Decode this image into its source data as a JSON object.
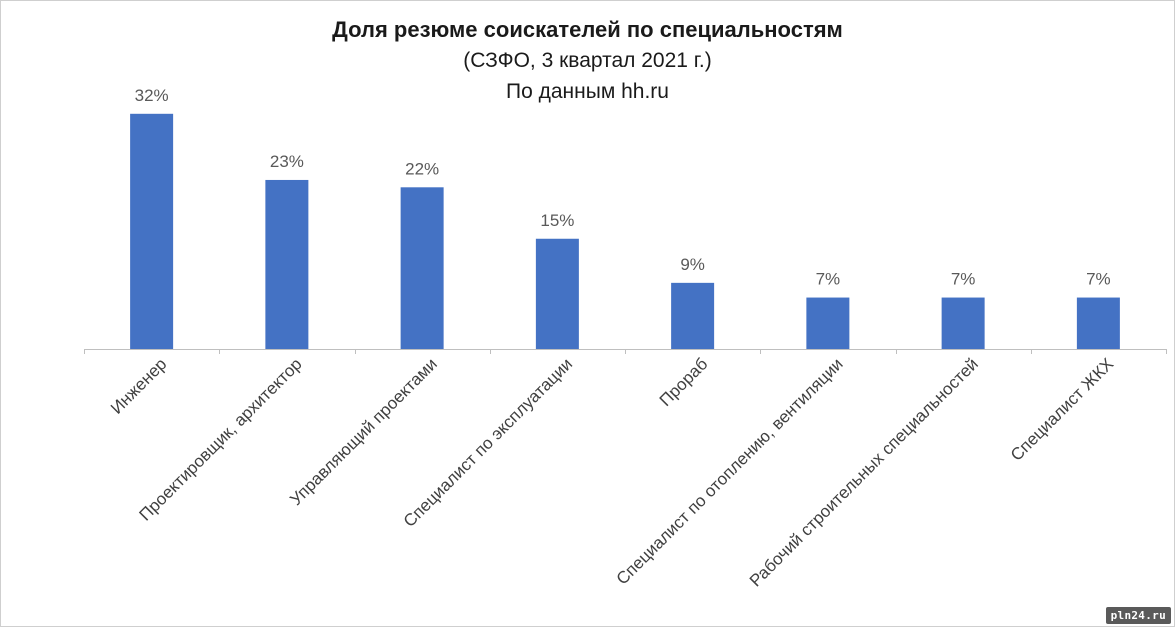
{
  "chart_data": {
    "type": "bar",
    "title": "Доля резюме соискателей по специальностям",
    "subtitle_1": "(СЗФО, 3 квартал 2021 г.)",
    "subtitle_2": "По данным hh.ru",
    "categories": [
      "Инженер",
      "Проектировщик, архитектор",
      "Управляющий проектами",
      "Специалист по эксплуатации",
      "Прораб",
      "Специалист по отоплению, вентиляции",
      "Рабочий строительных специальностей",
      "Специалист ЖКХ"
    ],
    "values": [
      32,
      23,
      22,
      15,
      9,
      7,
      7,
      7
    ],
    "data_labels": [
      "32%",
      "23%",
      "22%",
      "15%",
      "9%",
      "7%",
      "7%",
      "7%"
    ],
    "unit": "%",
    "ylim": [
      0,
      34
    ],
    "grid": false,
    "legend": "none",
    "bar_color": "#4472c4"
  },
  "watermark": "pln24.ru"
}
